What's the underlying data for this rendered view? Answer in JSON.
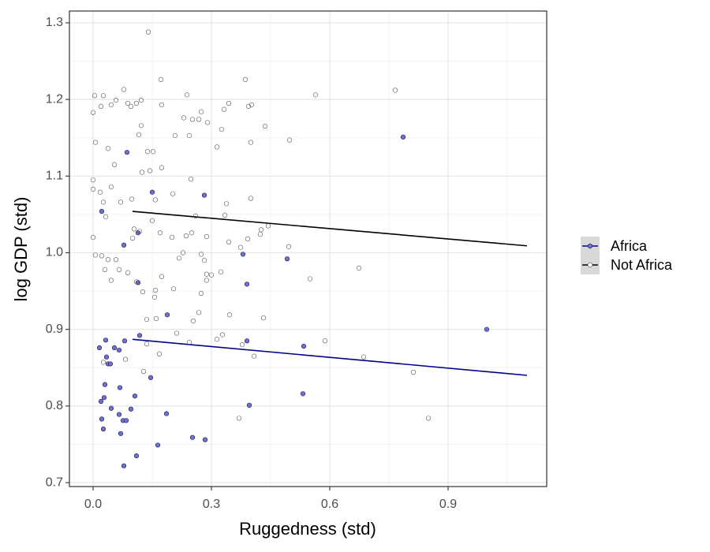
{
  "chart_data": {
    "type": "scatter",
    "x_label": "Ruggedness (std)",
    "y_label": "log GDP (std)",
    "xlim": [
      -0.06,
      1.15
    ],
    "ylim": [
      0.6949,
      1.3154
    ],
    "xticks": [
      {
        "value": 0,
        "label": "0.0"
      },
      0.3,
      0.6,
      0.9
    ],
    "yticks": [
      0.7,
      0.8,
      0.9,
      {
        "value": 1,
        "label": "1.0"
      },
      1.1,
      1.2,
      1.3
    ],
    "x_minor_grid": [
      0.15,
      0.45,
      0.75,
      1.05
    ],
    "y_minor_grid": [
      0.75,
      0.85,
      0.95,
      1.05,
      1.15,
      1.25
    ],
    "grid": true,
    "legend_position": "right",
    "series": [
      {
        "name": "Africa",
        "color": "#00008b",
        "marker_fill": "#7070d0",
        "marker_edge": "#1a1a4d",
        "x": [
          0.086,
          0.786,
          0.15,
          0.282,
          0.022,
          0.114,
          0.078,
          0.492,
          0.38,
          0.114,
          0.39,
          0.188,
          0.998,
          0.118,
          0.032,
          0.08,
          0.39,
          0.016,
          0.054,
          0.534,
          0.066,
          0.034,
          0.038,
          0.044,
          0.03,
          0.146,
          0.068,
          0.028,
          0.106,
          0.532,
          0.02,
          0.396,
          0.046,
          0.096,
          0.066,
          0.186,
          0.022,
          0.076,
          0.084,
          0.026,
          0.07,
          0.252,
          0.284,
          0.164,
          0.11,
          0.078
        ],
        "values": [
          1.131,
          1.151,
          1.079,
          1.075,
          1.054,
          1.026,
          1.01,
          0.992,
          0.998,
          0.961,
          0.959,
          0.919,
          0.9,
          0.892,
          0.886,
          0.885,
          0.885,
          0.876,
          0.876,
          0.878,
          0.873,
          0.864,
          0.855,
          0.855,
          0.828,
          0.837,
          0.824,
          0.811,
          0.813,
          0.816,
          0.806,
          0.801,
          0.797,
          0.796,
          0.789,
          0.79,
          0.783,
          0.781,
          0.781,
          0.77,
          0.764,
          0.759,
          0.756,
          0.749,
          0.735,
          0.722
        ],
        "fit": {
          "x": [
            0.1,
            1.1
          ],
          "values": [
            0.887,
            0.84
          ]
        }
      },
      {
        "name": "Not Africa",
        "color": "#000000",
        "marker_fill": "none",
        "marker_edge": "#555555",
        "x": [
          0.14,
          0.004,
          0.026,
          0.078,
          0.172,
          0.386,
          0.564,
          0.766,
          0.058,
          0.088,
          0.096,
          0.11,
          0.122,
          0.174,
          0.238,
          0.02,
          0.046,
          0.0,
          0.274,
          0.344,
          0.332,
          0.394,
          0.402,
          0.23,
          0.252,
          0.268,
          0.29,
          0.122,
          0.436,
          0.326,
          0.244,
          0.116,
          0.208,
          0.498,
          0.006,
          0.4,
          0.314,
          0.038,
          0.138,
          0.152,
          0.054,
          0.174,
          0.124,
          0.144,
          0.248,
          0.0,
          0.046,
          0.0,
          0.018,
          0.202,
          0.338,
          0.4,
          0.026,
          0.07,
          0.098,
          0.158,
          0.032,
          0.334,
          0.26,
          0.444,
          0.104,
          0.15,
          0.118,
          0.17,
          0.236,
          0.25,
          0.288,
          0.424,
          0.426,
          0.392,
          0.344,
          0.0,
          0.1,
          0.2,
          0.374,
          0.496,
          0.228,
          0.022,
          0.218,
          0.274,
          0.282,
          0.006,
          0.038,
          0.058,
          0.03,
          0.066,
          0.674,
          0.088,
          0.324,
          0.288,
          0.3,
          0.046,
          0.174,
          0.55,
          0.11,
          0.288,
          0.126,
          0.158,
          0.204,
          0.274,
          0.156,
          0.268,
          0.346,
          0.136,
          0.16,
          0.254,
          0.432,
          0.212,
          0.328,
          0.314,
          0.244,
          0.588,
          0.136,
          0.378,
          0.408,
          0.686,
          0.168,
          0.082,
          0.026,
          0.128,
          0.812,
          0.37,
          0.85
        ],
        "values": [
          1.288,
          1.205,
          1.205,
          1.213,
          1.226,
          1.226,
          1.206,
          1.212,
          1.199,
          1.195,
          1.191,
          1.195,
          1.199,
          1.193,
          1.206,
          1.191,
          1.193,
          1.183,
          1.184,
          1.195,
          1.187,
          1.191,
          1.193,
          1.176,
          1.174,
          1.174,
          1.17,
          1.166,
          1.165,
          1.161,
          1.153,
          1.154,
          1.153,
          1.147,
          1.144,
          1.144,
          1.138,
          1.136,
          1.132,
          1.132,
          1.115,
          1.111,
          1.105,
          1.107,
          1.096,
          1.095,
          1.086,
          1.083,
          1.079,
          1.077,
          1.064,
          1.071,
          1.066,
          1.066,
          1.07,
          1.069,
          1.047,
          1.049,
          1.048,
          1.035,
          1.031,
          1.042,
          1.028,
          1.026,
          1.022,
          1.026,
          1.021,
          1.024,
          1.03,
          1.018,
          1.014,
          1.02,
          1.019,
          1.02,
          1.007,
          1.008,
          1.0,
          0.996,
          0.993,
          0.998,
          0.99,
          0.997,
          0.991,
          0.991,
          0.978,
          0.978,
          0.98,
          0.974,
          0.975,
          0.972,
          0.971,
          0.964,
          0.969,
          0.966,
          0.962,
          0.964,
          0.949,
          0.951,
          0.953,
          0.947,
          0.942,
          0.922,
          0.919,
          0.913,
          0.914,
          0.911,
          0.915,
          0.895,
          0.893,
          0.887,
          0.883,
          0.885,
          0.881,
          0.88,
          0.865,
          0.864,
          0.868,
          0.861,
          0.857,
          0.845,
          0.844,
          0.784,
          0.784
        ],
        "fit": {
          "x": [
            0.1,
            1.1
          ],
          "values": [
            1.054,
            1.009
          ]
        }
      }
    ]
  }
}
